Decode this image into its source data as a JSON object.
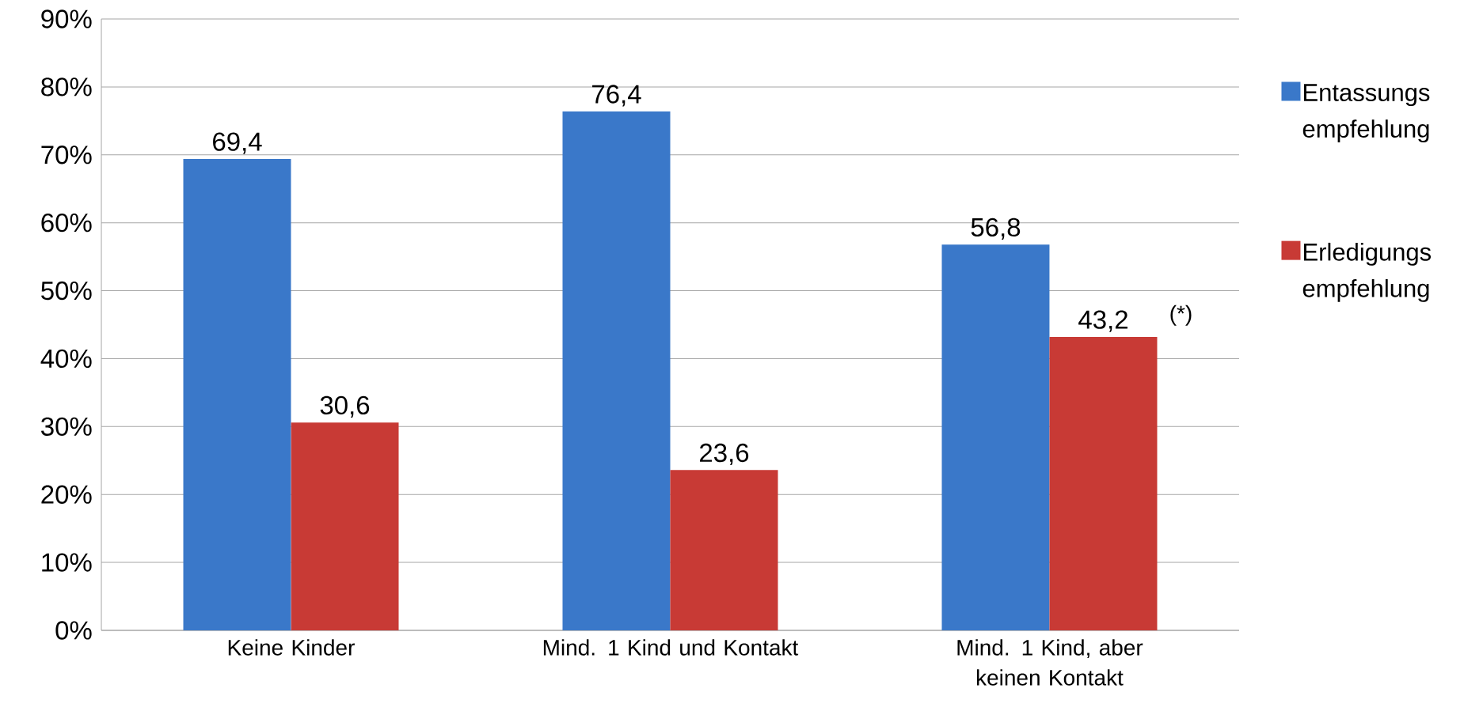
{
  "chart_data": {
    "type": "bar",
    "categories": [
      "Keine Kinder",
      "Mind. 1 Kind und Kontakt",
      "Mind. 1 Kind, aber keinen Kontakt"
    ],
    "series": [
      {
        "name": "Entassungs empfehlung",
        "color": "#3a78c9",
        "values": [
          69.4,
          76.4,
          56.8
        ],
        "value_labels": [
          "69,4",
          "76,4",
          "56,8"
        ]
      },
      {
        "name": "Erledigungs empfehlung",
        "color": "#c83a35",
        "values": [
          30.6,
          23.6,
          43.2
        ],
        "value_labels": [
          "30,6",
          "23,6",
          "43,2"
        ]
      }
    ],
    "ylim": [
      0,
      90
    ],
    "yticks": [
      {
        "value": 0,
        "label": "0%"
      },
      {
        "value": 10,
        "label": "10%"
      },
      {
        "value": 20,
        "label": "20%"
      },
      {
        "value": 30,
        "label": "30%"
      },
      {
        "value": 40,
        "label": "40%"
      },
      {
        "value": 50,
        "label": "50%"
      },
      {
        "value": 60,
        "label": "60%"
      },
      {
        "value": 70,
        "label": "70%"
      },
      {
        "value": 80,
        "label": "80%"
      },
      {
        "value": 90,
        "label": "90%"
      }
    ],
    "grid": "y",
    "legend": "right",
    "annotations": [
      "(*)"
    ]
  }
}
